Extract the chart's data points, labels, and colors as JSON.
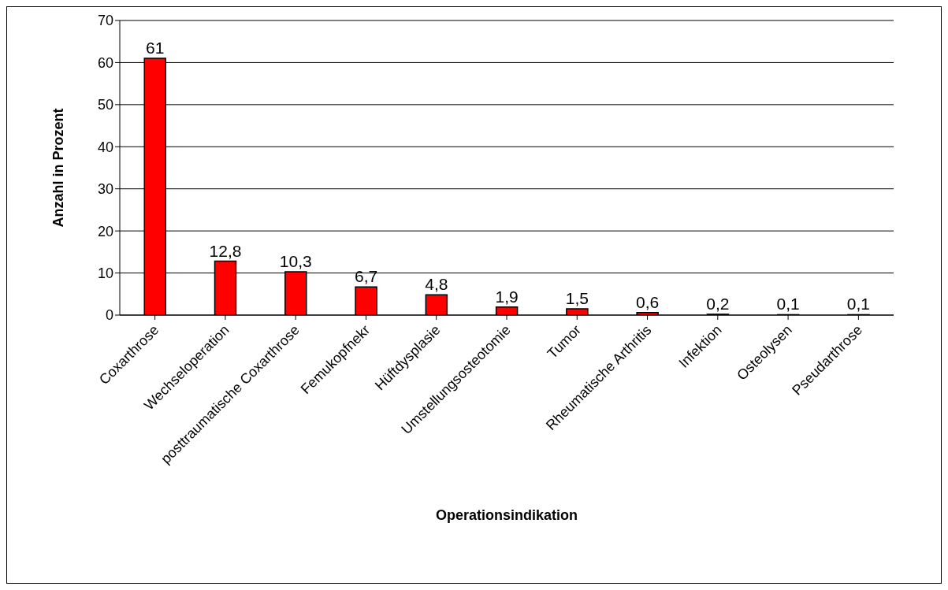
{
  "chart_data": {
    "type": "bar",
    "xlabel": "Operationsindikation",
    "ylabel": "Anzahl in Prozent",
    "categories": [
      "Coxarthrose",
      "Wechseloperation",
      "posttraumatische Coxarthrose",
      "Femukopfnekr",
      "Hüftdysplasie",
      "Umstellungsosteotomie",
      "Tumor",
      "Rheumatische Arthritis",
      "Infektion",
      "Osteolysen",
      "Pseudarthrose"
    ],
    "values": [
      61,
      12.8,
      10.3,
      6.7,
      4.8,
      1.9,
      1.5,
      0.6,
      0.2,
      0.1,
      0.1
    ],
    "value_labels": [
      "61",
      "12,8",
      "10,3",
      "6,7",
      "4,8",
      "1,9",
      "1,5",
      "0,6",
      "0,2",
      "0,1",
      "0,1"
    ],
    "color": "#ff0000",
    "ylim": [
      0,
      70
    ],
    "yticks": [
      0,
      10,
      20,
      30,
      40,
      50,
      60,
      70
    ],
    "grid": "y"
  }
}
